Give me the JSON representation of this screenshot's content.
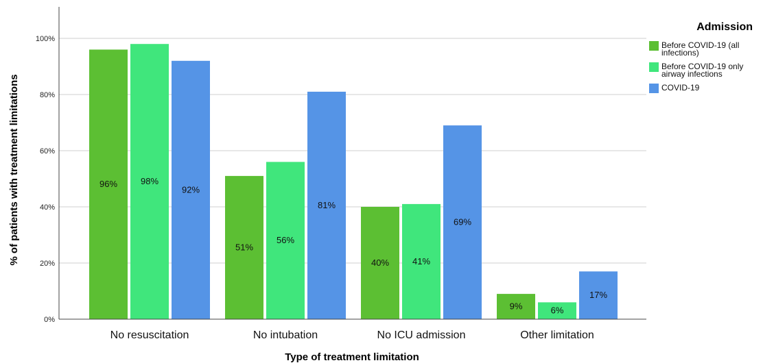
{
  "chart_data": {
    "type": "bar",
    "categories": [
      "No resuscitation",
      "No intubation",
      "No ICU admission",
      "Other limitation"
    ],
    "series": [
      {
        "name": "Before COVID-19 (all infections)",
        "legend_lines": [
          "Before COVID-19 (all",
          "infections)"
        ],
        "color": "#5cbf33",
        "values": [
          96,
          51,
          40,
          9
        ],
        "labels": [
          "96%",
          "51%",
          "40%",
          "9%"
        ]
      },
      {
        "name": "Before COVID-19 only airway infections",
        "legend_lines": [
          "Before COVID-19 only",
          "airway infections"
        ],
        "color": "#40e67c",
        "values": [
          98,
          56,
          41,
          6
        ],
        "labels": [
          "98%",
          "56%",
          "41%",
          "6%"
        ]
      },
      {
        "name": "COVID-19",
        "legend_lines": [
          "COVID-19"
        ],
        "color": "#5594e6",
        "values": [
          92,
          81,
          69,
          17
        ],
        "labels": [
          "92%",
          "81%",
          "69%",
          "17%"
        ]
      }
    ],
    "xlabel": "Type of treatment limitation",
    "ylabel": "% of patients with treatment limitations",
    "ylim": [
      0,
      100
    ],
    "yticks": [
      0,
      20,
      40,
      60,
      80,
      100
    ],
    "ytick_labels": [
      "0%",
      "20%",
      "40%",
      "60%",
      "80%",
      "100%"
    ],
    "grid": true,
    "legend": {
      "title": "Admission",
      "position": "right"
    }
  }
}
